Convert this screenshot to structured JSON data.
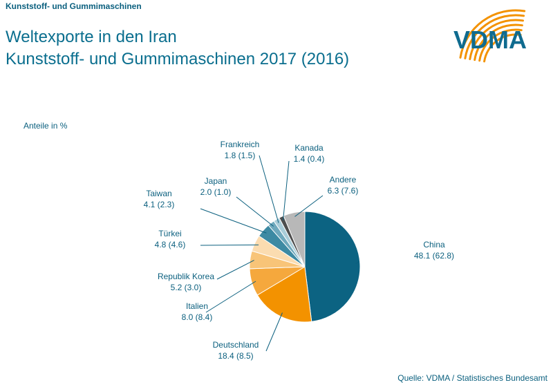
{
  "header": {
    "label": "Kunststoff- und Gummimaschinen"
  },
  "title": {
    "line1": "Weltexporte in den Iran",
    "line2": "Kunststoff- und Gummimaschinen 2017 (2016)"
  },
  "logo": {
    "text": "VDMA",
    "text_color": "#0f6b8f",
    "arc_color": "#f39200"
  },
  "source": "Quelle: VDMA / Statistisches Bundesamt",
  "chart_data": {
    "type": "pie",
    "unit_label": "Anteile in %",
    "slices": [
      {
        "name": "China",
        "value": 48.1,
        "prev": "62.8",
        "color": "#0c6382"
      },
      {
        "name": "Deutschland",
        "value": 18.4,
        "prev": "8.5",
        "color": "#f39200"
      },
      {
        "name": "Italien",
        "value": 8.0,
        "prev": "8.4",
        "color": "#f5a83d"
      },
      {
        "name": "Republik Korea",
        "value": 5.2,
        "prev": "3.0",
        "color": "#f8c478"
      },
      {
        "name": "Türkei",
        "value": 4.8,
        "prev": "4.6",
        "color": "#fbdcb0"
      },
      {
        "name": "Taiwan",
        "value": 4.1,
        "prev": "2.3",
        "color": "#3d8aa3"
      },
      {
        "name": "Japan",
        "value": 2.0,
        "prev": "1.0",
        "color": "#6fa9bd"
      },
      {
        "name": "Frankreich",
        "value": 1.8,
        "prev": "1.5",
        "color": "#a9cdd9"
      },
      {
        "name": "Kanada",
        "value": 1.4,
        "prev": "0.4",
        "color": "#4e4e4e"
      },
      {
        "name": "Andere",
        "value": 6.3,
        "prev": "7.6",
        "color": "#b8b8b8"
      }
    ]
  }
}
